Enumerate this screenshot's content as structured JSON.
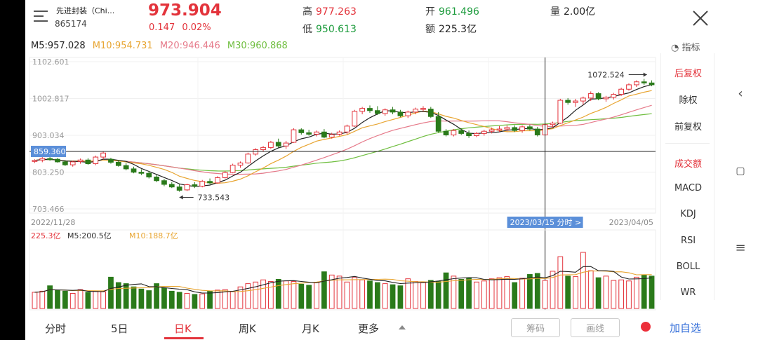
{
  "header": {
    "name": "先进封装（Chi...",
    "code": "865174",
    "price": "973.904",
    "change": "0.147",
    "change_pct": "0.02%",
    "high_label": "高",
    "high": "977.263",
    "low_label": "低",
    "low": "950.613",
    "open_label": "开",
    "open": "961.496",
    "amount_label": "额",
    "amount": "225.3亿",
    "volume_label": "量",
    "volume": "2.00亿"
  },
  "ma": {
    "m5": "M5:957.028",
    "m10": "M10:954.731",
    "m20": "M20:946.446",
    "m30": "M30:960.868"
  },
  "indicator_link": "指标",
  "colors": {
    "up": "#e3333b",
    "down": "#2a7a1a",
    "ma5": "#222222",
    "ma10": "#e8a531",
    "ma20": "#e67a8a",
    "ma30": "#6fbe3f",
    "accent_blue": "#2f6bd8"
  },
  "chart_data": {
    "type": "candlestick",
    "y_ticks": [
      "1102.601",
      "1002.817",
      "903.034",
      "803.250",
      "703.466"
    ],
    "ylim": [
      703.466,
      1102.601
    ],
    "crosshair_value": "859.360",
    "crosshair_date": "2023/03/15",
    "crosshair_link": "分时 >",
    "date_start": "2022/11/28",
    "date_end": "2023/04/05",
    "max_label": "1072.524",
    "min_label": "733.543",
    "candles": [
      [
        833,
        838,
        828,
        835
      ],
      [
        836,
        844,
        830,
        840
      ],
      [
        840,
        846,
        834,
        838
      ],
      [
        838,
        842,
        829,
        831
      ],
      [
        831,
        836,
        820,
        823
      ],
      [
        823,
        834,
        818,
        831
      ],
      [
        832,
        840,
        826,
        836
      ],
      [
        836,
        841,
        823,
        826
      ],
      [
        826,
        848,
        822,
        844
      ],
      [
        844,
        860,
        838,
        855
      ],
      [
        838,
        842,
        826,
        830
      ],
      [
        830,
        836,
        818,
        821
      ],
      [
        821,
        828,
        808,
        812
      ],
      [
        812,
        818,
        800,
        803
      ],
      [
        803,
        811,
        795,
        800
      ],
      [
        800,
        806,
        786,
        790
      ],
      [
        790,
        796,
        776,
        780
      ],
      [
        780,
        785,
        765,
        770
      ],
      [
        770,
        776,
        760,
        763
      ],
      [
        763,
        770,
        750,
        754
      ],
      [
        755,
        772,
        752,
        769
      ],
      [
        769,
        776,
        760,
        765
      ],
      [
        765,
        782,
        762,
        778
      ],
      [
        778,
        786,
        770,
        774
      ],
      [
        774,
        792,
        772,
        788
      ],
      [
        788,
        806,
        786,
        802
      ],
      [
        802,
        826,
        800,
        822
      ],
      [
        822,
        832,
        815,
        828
      ],
      [
        828,
        856,
        826,
        852
      ],
      [
        852,
        868,
        848,
        864
      ],
      [
        864,
        874,
        858,
        870
      ],
      [
        870,
        888,
        866,
        884
      ],
      [
        884,
        894,
        870,
        874
      ],
      [
        874,
        888,
        866,
        882
      ],
      [
        884,
        922,
        882,
        918
      ],
      [
        918,
        922,
        905,
        910
      ],
      [
        910,
        918,
        902,
        906
      ],
      [
        906,
        916,
        900,
        912
      ],
      [
        912,
        920,
        895,
        898
      ],
      [
        898,
        910,
        894,
        905
      ],
      [
        906,
        916,
        902,
        912
      ],
      [
        912,
        932,
        906,
        928
      ],
      [
        928,
        972,
        926,
        968
      ],
      [
        968,
        980,
        960,
        976
      ],
      [
        976,
        984,
        964,
        970
      ],
      [
        970,
        982,
        958,
        962
      ],
      [
        962,
        976,
        956,
        972
      ],
      [
        972,
        980,
        960,
        966
      ],
      [
        966,
        972,
        952,
        956
      ],
      [
        956,
        970,
        950,
        966
      ],
      [
        966,
        978,
        960,
        974
      ],
      [
        974,
        982,
        968,
        976
      ],
      [
        974,
        980,
        950,
        954
      ],
      [
        954,
        966,
        910,
        914
      ],
      [
        914,
        920,
        900,
        904
      ],
      [
        904,
        920,
        900,
        916
      ],
      [
        916,
        922,
        904,
        908
      ],
      [
        908,
        916,
        896,
        902
      ],
      [
        902,
        912,
        898,
        908
      ],
      [
        908,
        918,
        902,
        914
      ],
      [
        914,
        924,
        908,
        918
      ],
      [
        918,
        928,
        912,
        920
      ],
      [
        920,
        930,
        914,
        924
      ],
      [
        924,
        930,
        912,
        916
      ],
      [
        916,
        930,
        910,
        926
      ],
      [
        926,
        932,
        916,
        920
      ],
      [
        920,
        926,
        900,
        904
      ],
      [
        904,
        936,
        902,
        932
      ],
      [
        932,
        940,
        926,
        936
      ],
      [
        936,
        1002,
        934,
        998
      ],
      [
        998,
        1004,
        986,
        992
      ],
      [
        992,
        1002,
        980,
        996
      ],
      [
        996,
        1008,
        986,
        1004
      ],
      [
        1004,
        1022,
        996,
        1016
      ],
      [
        1016,
        1020,
        998,
        1002
      ],
      [
        1002,
        1010,
        994,
        1006
      ],
      [
        1006,
        1018,
        1000,
        1014
      ],
      [
        1014,
        1032,
        1010,
        1028
      ],
      [
        1028,
        1044,
        1024,
        1040
      ],
      [
        1040,
        1052,
        1034,
        1048
      ],
      [
        1048,
        1056,
        1040,
        1045
      ],
      [
        1045,
        1052,
        1036,
        1040
      ]
    ],
    "volume_ticks": [
      "225.3亿",
      "M5:200.5亿",
      "M10:188.7亿"
    ],
    "volumes": [
      150,
      160,
      210,
      170,
      160,
      140,
      175,
      150,
      160,
      155,
      290,
      240,
      230,
      200,
      180,
      165,
      230,
      190,
      160,
      150,
      140,
      130,
      135,
      160,
      170,
      175,
      155,
      200,
      230,
      245,
      265,
      250,
      270,
      255,
      250,
      225,
      215,
      240,
      340,
      310,
      300,
      245,
      290,
      265,
      255,
      240,
      230,
      220,
      210,
      275,
      250,
      240,
      260,
      250,
      330,
      300,
      270,
      280,
      245,
      255,
      275,
      285,
      295,
      240,
      280,
      315,
      325,
      260,
      345,
      480,
      300,
      295,
      520,
      350,
      285,
      300,
      260,
      265,
      255,
      290,
      310,
      300
    ]
  },
  "side_menu": {
    "items": [
      "后复权",
      "除权",
      "前复权"
    ],
    "indicators": [
      "成交额",
      "MACD",
      "KDJ",
      "RSI",
      "BOLL",
      "WR"
    ]
  },
  "tabs": [
    "分时",
    "5日",
    "日K",
    "周K",
    "月K",
    "更多"
  ],
  "buttons": {
    "chips": "筹码",
    "draw": "画线",
    "add": "加自选"
  }
}
